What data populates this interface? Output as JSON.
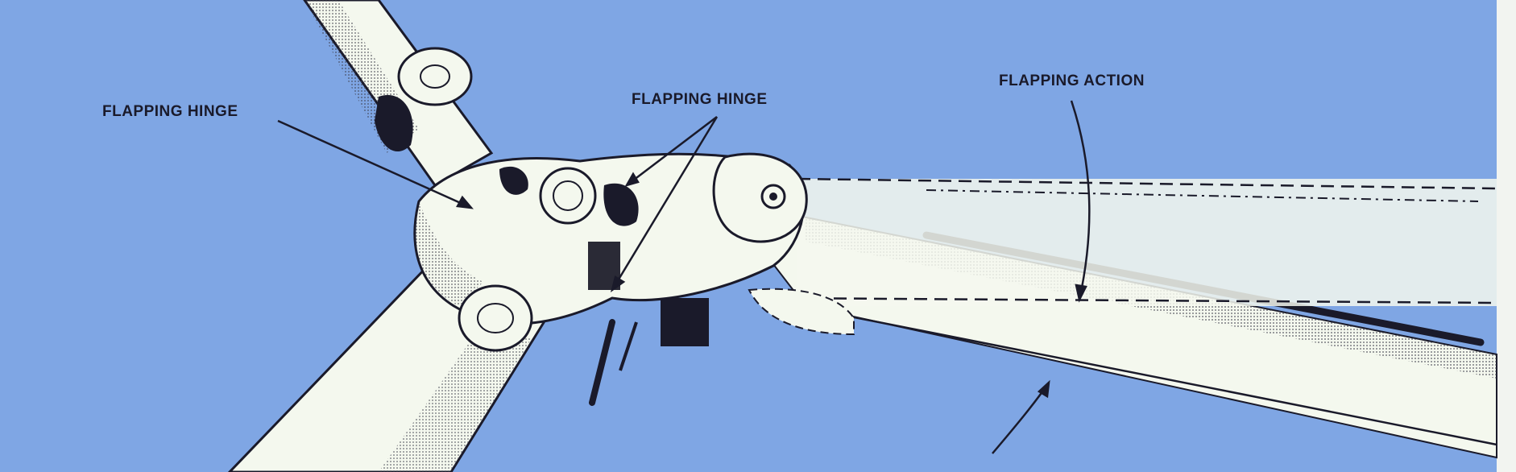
{
  "diagram": {
    "labels": {
      "flapping_hinge_left": "FLAPPING HINGE",
      "flapping_hinge_right": "FLAPPING HINGE",
      "flapping_action": "FLAPPING ACTION"
    },
    "colors": {
      "background": "#7fa6e4",
      "blade": "#f4f8ee",
      "ink": "#1a1a2a",
      "shade": "#5a5a66"
    }
  }
}
